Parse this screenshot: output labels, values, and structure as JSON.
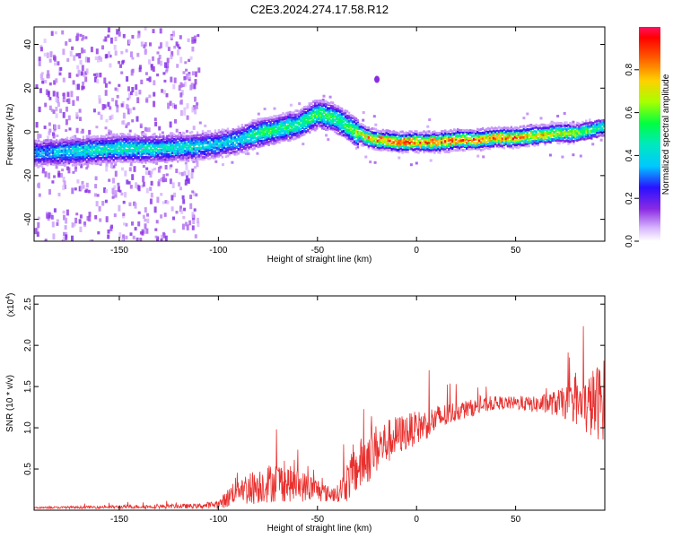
{
  "title": "C2E3.2024.274.17.58.R12",
  "colors": {
    "snr_line": "#e8302e",
    "frame": "#000000"
  },
  "chart_data": [
    {
      "type": "heatmap",
      "xlabel": "Height of straight line (km)",
      "ylabel": "Frequency (Hz)",
      "xlim": [
        -193,
        95
      ],
      "ylim": [
        -50,
        48
      ],
      "xticks": [
        "-150",
        "-100",
        "-50",
        "0",
        "50"
      ],
      "xtick_values": [
        -150,
        -100,
        -50,
        0,
        50
      ],
      "yticks": [
        "-40",
        "-20",
        "0",
        "20",
        "40"
      ],
      "ytick_values": [
        -40,
        -20,
        0,
        20,
        40
      ],
      "colorbar": {
        "label": "Normalized spectral amplitude",
        "ticks": [
          "0.0",
          "0.2",
          "0.4",
          "0.6",
          "0.8"
        ],
        "tick_values": [
          0.0,
          0.2,
          0.4,
          0.6,
          0.8
        ],
        "range": [
          0,
          1
        ]
      },
      "ridge_x": [
        -190,
        -170,
        -150,
        -130,
        -110,
        -100,
        -90,
        -80,
        -70,
        -60,
        -50,
        -42,
        -35,
        -30,
        -25,
        -20,
        -10,
        0,
        10,
        20,
        30,
        40,
        50,
        60,
        70,
        80,
        90,
        95
      ],
      "ridge_y": [
        -9,
        -8,
        -7,
        -7,
        -6,
        -5,
        -3,
        0,
        2,
        4,
        9,
        7,
        3,
        0,
        -2,
        -3,
        -4,
        -4,
        -4,
        -3,
        -3,
        -2,
        -2,
        -1,
        0,
        0,
        2,
        3
      ],
      "ridge_amplitude": [
        0.35,
        0.45,
        0.5,
        0.45,
        0.45,
        0.4,
        0.45,
        0.55,
        0.55,
        0.55,
        0.6,
        0.55,
        0.6,
        0.7,
        0.8,
        0.9,
        0.95,
        0.9,
        0.9,
        0.92,
        0.9,
        0.85,
        0.9,
        0.8,
        0.75,
        0.7,
        0.6,
        0.5
      ]
    },
    {
      "type": "line",
      "xlabel": "Height of straight line (km)",
      "ylabel": "SNR (10 * v/v)",
      "y_multiplier": "(x10",
      "y_multiplier_exp": "4",
      "y_multiplier_close": ")",
      "xlim": [
        -193,
        95
      ],
      "ylim": [
        0,
        2.6
      ],
      "xticks": [
        "-150",
        "-100",
        "-50",
        "0",
        "50"
      ],
      "xtick_values": [
        -150,
        -100,
        -50,
        0,
        50
      ],
      "yticks": [
        "0.5",
        "1.0",
        "1.5",
        "2.0",
        "2.5"
      ],
      "ytick_values": [
        0.5,
        1.0,
        1.5,
        2.0,
        2.5
      ],
      "envelope_x": [
        -193,
        -150,
        -110,
        -100,
        -95,
        -90,
        -85,
        -80,
        -70,
        -60,
        -50,
        -45,
        -40,
        -35,
        -30,
        -25,
        -20,
        -10,
        0,
        10,
        20,
        30,
        40,
        50,
        60,
        70,
        80,
        85,
        90,
        95
      ],
      "envelope_y": [
        0.03,
        0.04,
        0.05,
        0.07,
        0.15,
        0.3,
        0.25,
        0.3,
        0.35,
        0.3,
        0.25,
        0.2,
        0.2,
        0.35,
        0.5,
        0.65,
        0.75,
        0.9,
        1.0,
        1.1,
        1.2,
        1.25,
        1.3,
        1.3,
        1.28,
        1.3,
        1.3,
        1.25,
        1.3,
        1.35
      ],
      "envelope_noise": [
        0.01,
        0.02,
        0.03,
        0.05,
        0.12,
        0.18,
        0.2,
        0.22,
        0.25,
        0.2,
        0.15,
        0.1,
        0.1,
        0.25,
        0.3,
        0.35,
        0.3,
        0.25,
        0.2,
        0.18,
        0.12,
        0.1,
        0.08,
        0.08,
        0.1,
        0.15,
        0.25,
        0.35,
        0.45,
        0.5
      ]
    }
  ]
}
